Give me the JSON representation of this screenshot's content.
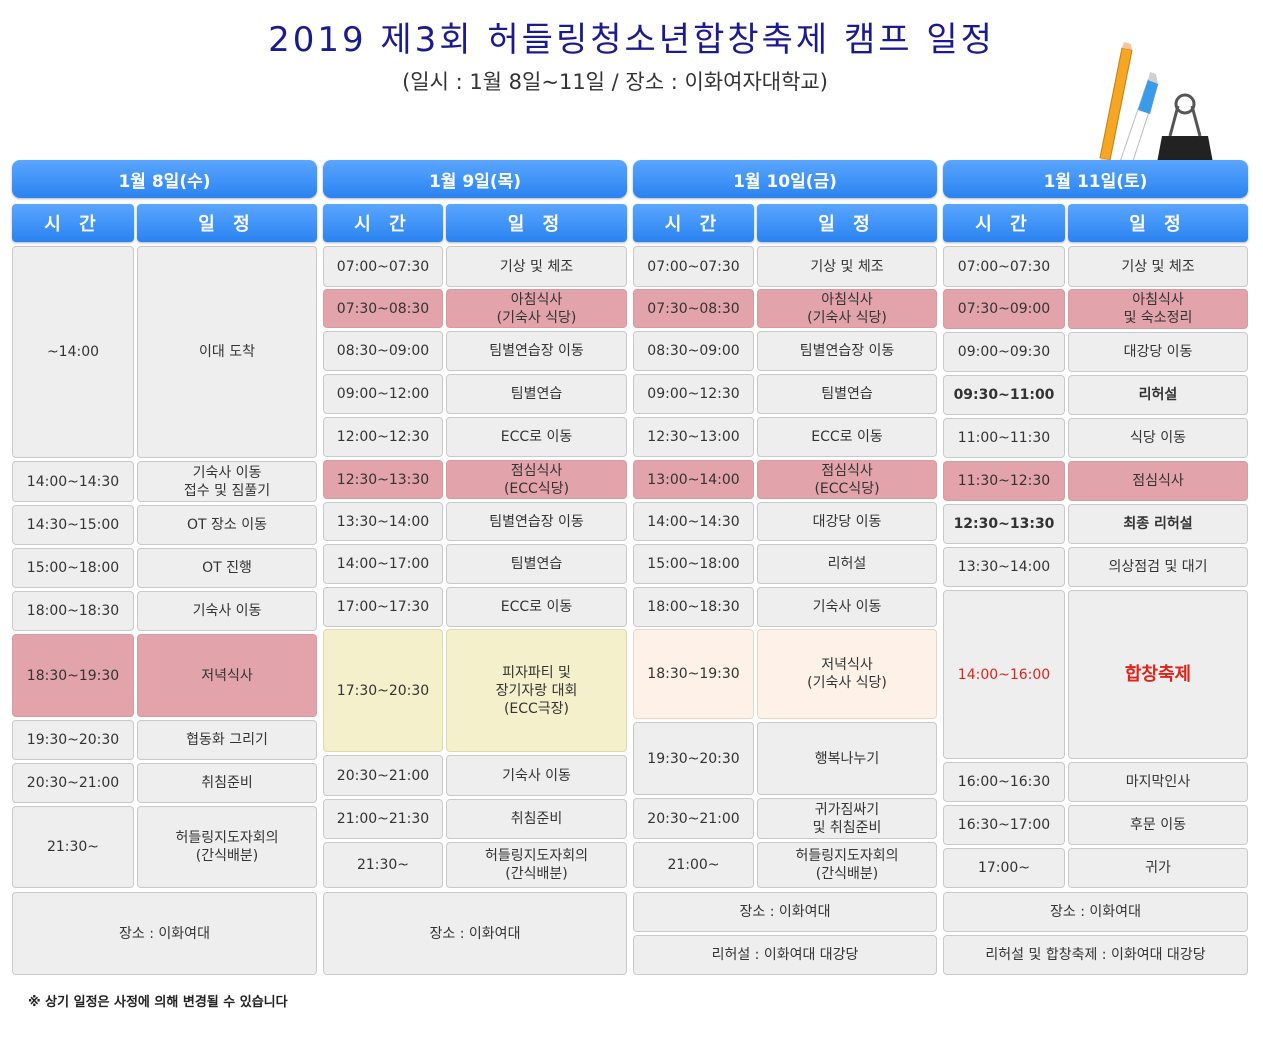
{
  "header": {
    "title": "2019 제3회 허들링청소년합창축제 캠프 일정",
    "subtitle": "(일시 : 1월 8일~11일 / 장소 : 이화여자대학교)"
  },
  "columns": {
    "time": "시 간",
    "schedule": "일 정"
  },
  "days": [
    {
      "label": "1월 8일(수)",
      "rows": [
        {
          "time": "~14:00",
          "event": "이대 도착"
        },
        {
          "time": "14:00~14:30",
          "event": "기숙사 이동\n접수 및 짐풀기"
        },
        {
          "time": "14:30~15:00",
          "event": "OT 장소 이동"
        },
        {
          "time": "15:00~18:00",
          "event": "OT 진행"
        },
        {
          "time": "18:00~18:30",
          "event": "기숙사 이동"
        },
        {
          "time": "18:30~19:30",
          "event": "저녁식사"
        },
        {
          "time": "19:30~20:30",
          "event": "협동화 그리기"
        },
        {
          "time": "20:30~21:00",
          "event": "취침준비"
        },
        {
          "time": "21:30~",
          "event": "허들링지도자회의\n(간식배분)"
        }
      ],
      "footer": [
        "장소 : 이화여대"
      ]
    },
    {
      "label": "1월 9일(목)",
      "rows": [
        {
          "time": "07:00~07:30",
          "event": "기상 및 체조"
        },
        {
          "time": "07:30~08:30",
          "event": "아침식사\n(기숙사 식당)"
        },
        {
          "time": "08:30~09:00",
          "event": "팀별연습장 이동"
        },
        {
          "time": "09:00~12:00",
          "event": "팀별연습"
        },
        {
          "time": "12:00~12:30",
          "event": "ECC로 이동"
        },
        {
          "time": "12:30~13:30",
          "event": "점심식사\n(ECC식당)"
        },
        {
          "time": "13:30~14:00",
          "event": "팀별연습장 이동"
        },
        {
          "time": "14:00~17:00",
          "event": "팀별연습"
        },
        {
          "time": "17:00~17:30",
          "event": "ECC로 이동"
        },
        {
          "time": "17:30~20:30",
          "event": "피자파티 및\n장기자랑 대회\n(ECC극장)"
        },
        {
          "time": "20:30~21:00",
          "event": "기숙사 이동"
        },
        {
          "time": "21:00~21:30",
          "event": "취침준비"
        },
        {
          "time": "21:30~",
          "event": "허들링지도자회의\n(간식배분)"
        }
      ],
      "footer": [
        "장소 : 이화여대"
      ]
    },
    {
      "label": "1월 10일(금)",
      "rows": [
        {
          "time": "07:00~07:30",
          "event": "기상 및 체조"
        },
        {
          "time": "07:30~08:30",
          "event": "아침식사\n(기숙사 식당)"
        },
        {
          "time": "08:30~09:00",
          "event": "팀별연습장 이동"
        },
        {
          "time": "09:00~12:30",
          "event": "팀별연습"
        },
        {
          "time": "12:30~13:00",
          "event": "ECC로 이동"
        },
        {
          "time": "13:00~14:00",
          "event": "점심식사\n(ECC식당)"
        },
        {
          "time": "14:00~14:30",
          "event": "대강당 이동"
        },
        {
          "time": "15:00~18:00",
          "event": "리허설"
        },
        {
          "time": "18:00~18:30",
          "event": "기숙사 이동"
        },
        {
          "time": "18:30~19:30",
          "event": "저녁식사\n(기숙사 식당)"
        },
        {
          "time": "19:30~20:30",
          "event": "행복나누기"
        },
        {
          "time": "20:30~21:00",
          "event": "귀가짐싸기\n및 취침준비"
        },
        {
          "time": "21:00~",
          "event": "허들링지도자회의\n(간식배분)"
        }
      ],
      "footer": [
        "장소 : 이화여대",
        "리허설 : 이화여대 대강당"
      ]
    },
    {
      "label": "1월 11일(토)",
      "rows": [
        {
          "time": "07:00~07:30",
          "event": "기상 및 체조"
        },
        {
          "time": "07:30~09:00",
          "event": "아침식사\n및 숙소정리"
        },
        {
          "time": "09:00~09:30",
          "event": "대강당 이동"
        },
        {
          "time": "09:30~11:00",
          "event": "리허설"
        },
        {
          "time": "11:00~11:30",
          "event": "식당 이동"
        },
        {
          "time": "11:30~12:30",
          "event": "점심식사"
        },
        {
          "time": "12:30~13:30",
          "event": "최종 리허설"
        },
        {
          "time": "13:30~14:00",
          "event": "의상점검 및 대기"
        },
        {
          "time": "14:00~16:00",
          "event": "합창축제"
        },
        {
          "time": "16:00~16:30",
          "event": "마지막인사"
        },
        {
          "time": "16:30~17:00",
          "event": "후문 이동"
        },
        {
          "time": "17:00~",
          "event": "귀가"
        }
      ],
      "footer": [
        "장소 : 이화여대",
        "리허설 및 합창축제 : 이화여대 대강당"
      ]
    }
  ],
  "note": "※ 상기 일정은 사정에 의해 변경될 수 있습니다",
  "colors": {
    "header_blue": "#2a83f0",
    "cell_gray": "#eeeeee",
    "meal_pink": "#e3a3aa",
    "party_yellow": "#f4f0cc",
    "dinner_peach": "#fdf1e8",
    "festival_red": "#e0231a"
  },
  "icons": [
    "pencil-icon",
    "pen-icon",
    "binder-clip-icon"
  ]
}
